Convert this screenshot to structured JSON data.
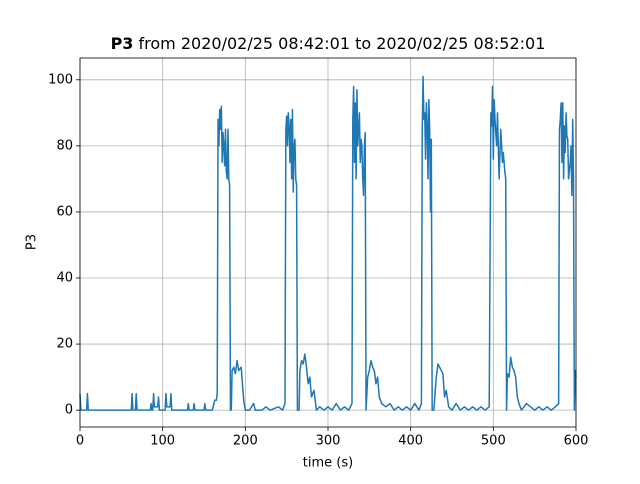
{
  "chart_data": {
    "type": "line",
    "title": {
      "bold": "P3",
      "rest": "from 2020/02/25 08:42:01 to 2020/02/25 08:52:01"
    },
    "xlabel": "time (s)",
    "ylabel": "P3",
    "xlim": [
      0,
      600
    ],
    "ylim": [
      -5.1,
      106.6
    ],
    "xticks": [
      0,
      100,
      200,
      300,
      400,
      500,
      600
    ],
    "yticks": [
      0,
      20,
      40,
      60,
      80,
      100
    ],
    "grid": true,
    "series": [
      {
        "color": "#1f77b4",
        "x": [
          0,
          1,
          8,
          9,
          10,
          62,
          63,
          64,
          67,
          68,
          69,
          85,
          86,
          87,
          88,
          89,
          90,
          94,
          95,
          96,
          103,
          104,
          105,
          109,
          110,
          111,
          130,
          131,
          132,
          137,
          138,
          139,
          150,
          151,
          152,
          160,
          163,
          165,
          166,
          167,
          168,
          169,
          170,
          171,
          172,
          173,
          174,
          175,
          176,
          177,
          178,
          179,
          180,
          181,
          182,
          183,
          184,
          186,
          188,
          190,
          192,
          195,
          198,
          200,
          205,
          210,
          212,
          220,
          225,
          230,
          240,
          245,
          248,
          249,
          250,
          251,
          252,
          253,
          254,
          255,
          256,
          257,
          258,
          259,
          260,
          261,
          262,
          263,
          265,
          266,
          268,
          270,
          272,
          274,
          276,
          278,
          280,
          283,
          286,
          290,
          295,
          300,
          305,
          310,
          315,
          320,
          325,
          329,
          330,
          331,
          332,
          333,
          334,
          335,
          336,
          337,
          338,
          339,
          340,
          341,
          342,
          343,
          344,
          345,
          346,
          348,
          350,
          352,
          354,
          356,
          358,
          360,
          362,
          365,
          370,
          375,
          380,
          385,
          390,
          395,
          400,
          405,
          410,
          413,
          414,
          415,
          416,
          417,
          418,
          419,
          420,
          421,
          422,
          423,
          424,
          425,
          426,
          428,
          431,
          433,
          435,
          437,
          439,
          441,
          443,
          446,
          450,
          455,
          460,
          465,
          470,
          475,
          480,
          485,
          490,
          495,
          497,
          498,
          499,
          500,
          501,
          502,
          504,
          505,
          507,
          509,
          511,
          512,
          514,
          515,
          516,
          517,
          519,
          521,
          523,
          525,
          527,
          529,
          531,
          534,
          540,
          545,
          550,
          555,
          560,
          565,
          570,
          575,
          579,
          580,
          581,
          582,
          583,
          584,
          585,
          586,
          587,
          588,
          589,
          590,
          591,
          593,
          594,
          595,
          596,
          597,
          598,
          599,
          600
        ],
        "values": [
          5,
          0,
          0,
          5,
          0,
          0,
          5,
          0,
          0,
          5,
          0,
          0,
          2,
          0,
          0,
          5,
          1,
          1,
          4,
          0,
          0,
          5,
          1,
          1,
          5,
          0,
          0,
          2,
          0,
          0,
          2,
          0,
          0,
          2,
          0,
          0,
          3,
          3,
          5,
          88,
          80,
          91,
          85,
          92,
          75,
          84,
          80,
          74,
          85,
          72,
          70,
          85,
          70,
          68,
          0,
          0,
          12,
          13,
          11,
          15,
          12,
          13,
          3,
          0,
          0,
          2,
          0,
          0,
          1,
          0,
          1,
          0,
          2,
          85,
          89,
          80,
          90,
          86,
          75,
          88,
          70,
          91,
          66,
          80,
          82,
          70,
          68,
          0,
          0,
          12,
          15,
          14,
          17,
          13,
          8,
          10,
          4,
          6,
          0,
          1,
          0,
          1,
          0,
          2,
          0,
          1,
          0,
          2,
          88,
          98,
          75,
          93,
          70,
          97,
          80,
          85,
          90,
          75,
          82,
          80,
          70,
          65,
          80,
          84,
          0,
          10,
          12,
          15,
          13,
          12,
          8,
          10,
          4,
          2,
          1,
          2,
          0,
          1,
          0,
          1,
          0,
          2,
          0,
          2,
          85,
          101,
          88,
          90,
          76,
          93,
          86,
          70,
          94,
          85,
          60,
          82,
          0,
          0,
          10,
          14,
          13,
          12,
          11,
          4,
          6,
          1,
          0,
          2,
          0,
          1,
          0,
          1,
          0,
          1,
          0,
          1,
          90,
          86,
          98,
          76,
          94,
          88,
          80,
          90,
          70,
          85,
          75,
          78,
          72,
          70,
          0,
          11,
          10,
          16,
          13,
          12,
          10,
          4,
          2,
          0,
          2,
          1,
          0,
          1,
          0,
          1,
          0,
          1,
          2,
          85,
          88,
          93,
          75,
          93,
          70,
          86,
          78,
          90,
          83,
          82,
          70,
          75,
          80,
          65,
          88,
          70,
          0,
          12,
          10
        ]
      }
    ]
  }
}
